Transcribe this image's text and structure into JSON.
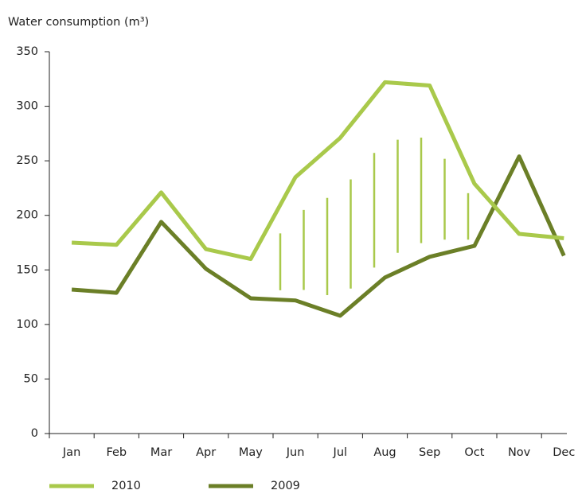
{
  "chart_data": {
    "type": "line",
    "y_axis_label": "Water consumption (m³)",
    "categories": [
      "Jan",
      "Feb",
      "Mar",
      "Apr",
      "May",
      "Jun",
      "Jul",
      "Aug",
      "Sep",
      "Oct",
      "Nov",
      "Dec"
    ],
    "series": [
      {
        "name": "2010",
        "color": "#a9c94b",
        "values": [
          175,
          173,
          221,
          169,
          160,
          235,
          271,
          322,
          319,
          229,
          183,
          179
        ]
      },
      {
        "name": "2009",
        "color": "#6b7f27",
        "values": [
          132,
          129,
          194,
          151,
          124,
          122,
          108,
          143,
          162,
          172,
          254,
          163
        ]
      }
    ],
    "ylim": [
      0,
      350
    ],
    "yticks": [
      0,
      50,
      100,
      150,
      200,
      250,
      300,
      350
    ],
    "legend": "bottom"
  }
}
